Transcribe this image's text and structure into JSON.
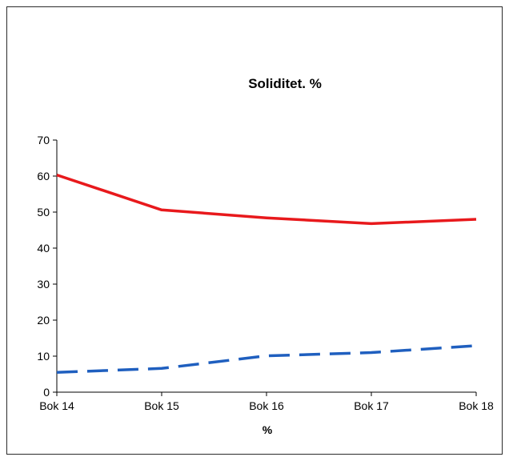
{
  "chart_data": {
    "type": "line",
    "title": "Soliditet. %",
    "xlabel": "%",
    "ylabel": "",
    "categories": [
      "Bok 14",
      "Bok 15",
      "Bok 16",
      "Bok 17",
      "Bok 18"
    ],
    "ylim": [
      0,
      70
    ],
    "yticks": [
      0,
      10,
      20,
      30,
      40,
      50,
      60,
      70
    ],
    "grid": false,
    "legend": "none",
    "series": [
      {
        "values": [
          60.3,
          50.6,
          48.4,
          46.8,
          48.0
        ],
        "color": "#e8191c",
        "style": "solid"
      },
      {
        "values": [
          5.5,
          6.6,
          10.1,
          11.0,
          12.9
        ],
        "color": "#1f5fbf",
        "style": "dashed"
      }
    ]
  }
}
